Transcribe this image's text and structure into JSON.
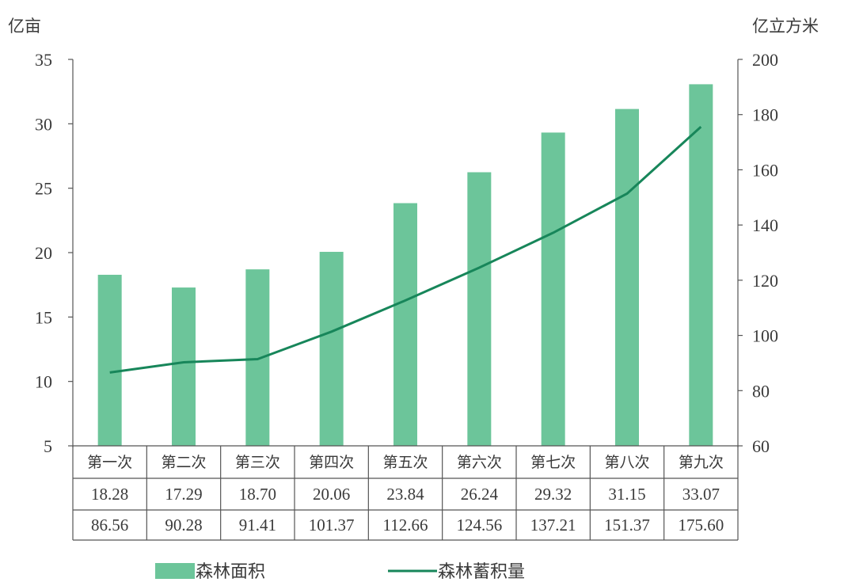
{
  "chart_data": {
    "type": "bar",
    "categories": [
      "第一次",
      "第二次",
      "第三次",
      "第四次",
      "第五次",
      "第六次",
      "第七次",
      "第八次",
      "第九次"
    ],
    "left_axis": {
      "unit": "亿亩",
      "ylim": [
        5,
        35
      ],
      "ticks": [
        35,
        30,
        25,
        20,
        15,
        10,
        5
      ]
    },
    "right_axis": {
      "unit": "亿立方米",
      "ylim": [
        60,
        200
      ],
      "ticks": [
        200,
        180,
        160,
        140,
        120,
        100,
        80,
        60
      ]
    },
    "series": [
      {
        "name": "森林面积",
        "type": "bar",
        "axis": "left",
        "color": "#6cc59a",
        "values": [
          18.28,
          17.29,
          18.7,
          20.06,
          23.84,
          26.24,
          29.32,
          31.15,
          33.07
        ],
        "labels": [
          "18.28",
          "17.29",
          "18.70",
          "20.06",
          "23.84",
          "26.24",
          "29.32",
          "31.15",
          "33.07"
        ]
      },
      {
        "name": "森林蓄积量",
        "type": "line",
        "axis": "right",
        "color": "#17865a",
        "values": [
          86.56,
          90.28,
          91.41,
          101.37,
          112.66,
          124.56,
          137.21,
          151.37,
          175.6
        ],
        "labels": [
          "86.56",
          "90.28",
          "91.41",
          "101.37",
          "112.66",
          "124.56",
          "137.21",
          "151.37",
          "175.60"
        ]
      }
    ],
    "legend_position": "bottom",
    "grid": false
  }
}
